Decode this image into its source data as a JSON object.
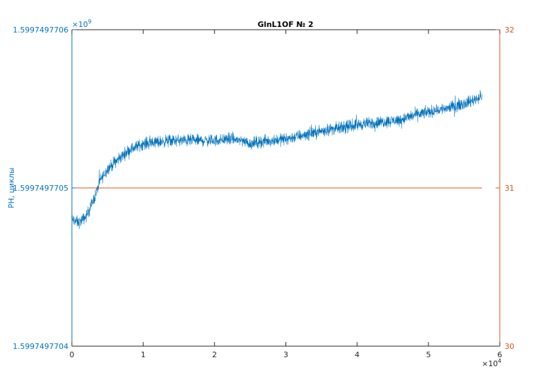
{
  "chart_data": {
    "type": "line",
    "title": "GlnL1OF № 2",
    "xlabel": "",
    "ylabel": "PH, циклы",
    "x_exponent_label": "×10",
    "x_exponent_power": "4",
    "y_exponent_label": "×10",
    "y_exponent_power": "9",
    "xlim": [
      0,
      6
    ],
    "ylim": [
      1.5997497704,
      1.5997497706
    ],
    "y2lim": [
      30,
      32
    ],
    "x_ticks": [
      "0",
      "1",
      "2",
      "3",
      "4",
      "5",
      "6"
    ],
    "x_tick_values": [
      0,
      1,
      2,
      3,
      4,
      5,
      6
    ],
    "y_ticks": [
      "1.5997497704",
      "1.5997497705",
      "1.5997497706"
    ],
    "y_tick_values": [
      0,
      1,
      2
    ],
    "y2_ticks": [
      "30",
      "31",
      "32"
    ],
    "y2_tick_values": [
      30,
      31,
      32
    ],
    "grid": false,
    "series": [
      {
        "axis": "left",
        "color": "#0072BD",
        "style": "noisy",
        "note_units": "x in units of 10^4, y offset above 1.5997497704 in units of 1e-10 ×10^9",
        "x": [
          0,
          0.1,
          0.2,
          0.3,
          0.35,
          0.4,
          0.5,
          0.6,
          0.7,
          0.8,
          0.9,
          1.0,
          1.2,
          1.4,
          1.6,
          1.8,
          2.0,
          2.2,
          2.4,
          2.5,
          2.6,
          2.8,
          3.0,
          3.2,
          3.4,
          3.6,
          3.8,
          4.0,
          4.2,
          4.4,
          4.6,
          4.8,
          5.0,
          5.2,
          5.4,
          5.6,
          5.75
        ],
        "y": [
          0.8,
          0.78,
          0.82,
          0.92,
          0.98,
          1.05,
          1.12,
          1.16,
          1.2,
          1.24,
          1.26,
          1.28,
          1.29,
          1.3,
          1.3,
          1.3,
          1.3,
          1.31,
          1.3,
          1.28,
          1.29,
          1.3,
          1.31,
          1.33,
          1.35,
          1.37,
          1.38,
          1.4,
          1.41,
          1.42,
          1.43,
          1.46,
          1.48,
          1.5,
          1.52,
          1.55,
          1.58
        ],
        "noise": 0.055
      },
      {
        "axis": "right",
        "color": "#D95319",
        "style": "line",
        "x": [
          0,
          5.75
        ],
        "y": [
          31,
          31
        ]
      }
    ]
  }
}
